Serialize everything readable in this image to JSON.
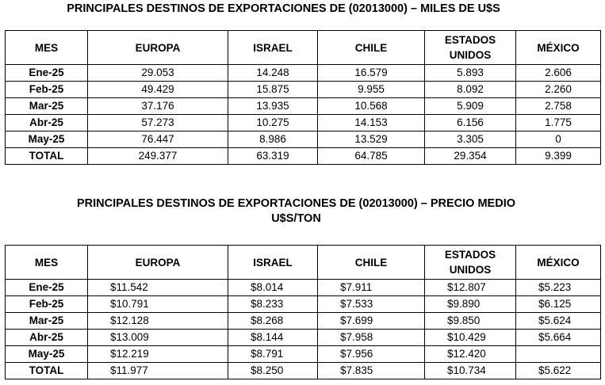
{
  "section1": {
    "title": "PRINCIPALES DESTINOS DE EXPORTACIONES DE (02013000) – MILES DE U$S",
    "headers": [
      "MES",
      "EUROPA",
      "ISRAEL",
      "CHILE",
      "ESTADOS UNIDOS",
      "MÉXICO"
    ],
    "rows": [
      {
        "mes": "Ene-25",
        "cells": [
          "29.053",
          "14.248",
          "16.579",
          "5.893",
          "2.606"
        ]
      },
      {
        "mes": "Feb-25",
        "cells": [
          "49.429",
          "15.875",
          "9.955",
          "8.092",
          "2.260"
        ]
      },
      {
        "mes": "Mar-25",
        "cells": [
          "37.176",
          "13.935",
          "10.568",
          "5.909",
          "2.758"
        ]
      },
      {
        "mes": "Abr-25",
        "cells": [
          "57.273",
          "10.275",
          "14.153",
          "6.156",
          "1.775"
        ]
      },
      {
        "mes": "May-25",
        "cells": [
          "76.447",
          "8.986",
          "13.529",
          "3.305",
          "0"
        ]
      },
      {
        "mes": "TOTAL",
        "cells": [
          "249.377",
          "63.319",
          "64.785",
          "29.354",
          "9.399"
        ]
      }
    ]
  },
  "section2": {
    "title_line1": "PRINCIPALES DESTINOS DE EXPORTACIONES DE (02013000) – PRECIO MEDIO",
    "title_line2": "U$S/TON",
    "headers": [
      "MES",
      "EUROPA",
      "ISRAEL",
      "CHILE",
      "ESTADOS UNIDOS",
      "MÉXICO"
    ],
    "rows": [
      {
        "mes": "Ene-25",
        "cells": [
          "$11.542",
          "$8.014",
          "$7.911",
          "$12.807",
          "$5.223"
        ]
      },
      {
        "mes": "Feb-25",
        "cells": [
          "$10.791",
          "$8.233",
          "$7.533",
          "$9.890",
          "$6.125"
        ]
      },
      {
        "mes": "Mar-25",
        "cells": [
          "$12.128",
          "$8.268",
          "$7.699",
          "$9.850",
          "$5.624"
        ]
      },
      {
        "mes": "Abr-25",
        "cells": [
          "$13.009",
          "$8.144",
          "$7.958",
          "$10.429",
          "$5.664"
        ]
      },
      {
        "mes": "May-25",
        "cells": [
          "$12.219",
          "$8.791",
          "$7.956",
          "$12.420",
          ""
        ]
      },
      {
        "mes": "TOTAL",
        "cells": [
          "$11.977",
          "$8.250",
          "$7.835",
          "$10.734",
          "$5.622"
        ]
      }
    ]
  }
}
